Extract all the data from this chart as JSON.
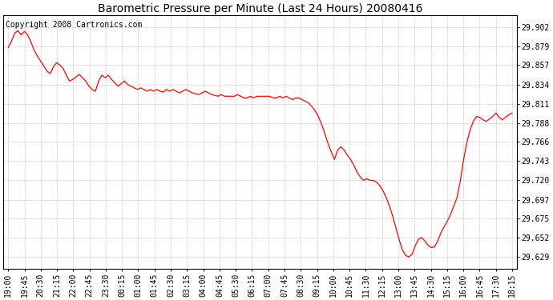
{
  "title": "Barometric Pressure per Minute (Last 24 Hours) 20080416",
  "copyright": "Copyright 2008 Cartronics.com",
  "line_color": "#ff0000",
  "background_color": "#ffffff",
  "grid_color": "#c8c8c8",
  "yticks": [
    29.629,
    29.652,
    29.675,
    29.697,
    29.72,
    29.743,
    29.766,
    29.788,
    29.811,
    29.834,
    29.857,
    29.879,
    29.902
  ],
  "ylim": [
    29.615,
    29.916
  ],
  "xtick_labels": [
    "19:00",
    "19:45",
    "20:30",
    "21:15",
    "22:00",
    "22:45",
    "23:30",
    "00:15",
    "01:00",
    "01:45",
    "02:30",
    "03:15",
    "04:00",
    "04:45",
    "05:30",
    "06:15",
    "07:00",
    "07:45",
    "08:30",
    "09:15",
    "10:00",
    "10:45",
    "11:30",
    "12:15",
    "13:00",
    "13:45",
    "14:30",
    "15:15",
    "16:00",
    "16:45",
    "17:30",
    "18:15"
  ],
  "pressure_data": [
    29.878,
    29.885,
    29.895,
    29.898,
    29.893,
    29.897,
    29.893,
    29.885,
    29.875,
    29.868,
    29.862,
    29.856,
    29.85,
    29.847,
    29.855,
    29.86,
    29.857,
    29.853,
    29.845,
    29.838,
    29.84,
    29.843,
    29.846,
    29.842,
    29.838,
    29.832,
    29.828,
    29.826,
    29.838,
    29.845,
    29.842,
    29.845,
    29.84,
    29.836,
    29.832,
    29.835,
    29.838,
    29.834,
    29.832,
    29.83,
    29.828,
    29.83,
    29.828,
    29.826,
    29.828,
    29.826,
    29.828,
    29.826,
    29.825,
    29.828,
    29.826,
    29.828,
    29.826,
    29.824,
    29.826,
    29.828,
    29.826,
    29.824,
    29.823,
    29.822,
    29.824,
    29.826,
    29.824,
    29.822,
    29.821,
    29.82,
    29.822,
    29.82,
    29.82,
    29.82,
    29.82,
    29.822,
    29.82,
    29.818,
    29.818,
    29.82,
    29.818,
    29.82,
    29.82,
    29.82,
    29.82,
    29.82,
    29.818,
    29.818,
    29.82,
    29.818,
    29.82,
    29.818,
    29.816,
    29.818,
    29.818,
    29.816,
    29.814,
    29.812,
    29.808,
    29.803,
    29.796,
    29.787,
    29.776,
    29.764,
    29.754,
    29.745,
    29.756,
    29.76,
    29.756,
    29.75,
    29.745,
    29.738,
    29.73,
    29.724,
    29.72,
    29.722,
    29.72,
    29.72,
    29.718,
    29.714,
    29.708,
    29.7,
    29.69,
    29.678,
    29.664,
    29.65,
    29.638,
    29.631,
    29.629,
    29.632,
    29.642,
    29.65,
    29.652,
    29.648,
    29.643,
    29.64,
    29.641,
    29.648,
    29.658,
    29.665,
    29.672,
    29.68,
    29.69,
    29.7,
    29.72,
    29.745,
    29.765,
    29.78,
    29.79,
    29.796,
    29.795,
    29.792,
    29.79,
    29.793,
    29.796,
    29.8,
    29.795,
    29.792,
    29.795,
    29.798,
    29.8
  ],
  "title_fontsize": 10,
  "tick_fontsize": 7,
  "copyright_fontsize": 7
}
